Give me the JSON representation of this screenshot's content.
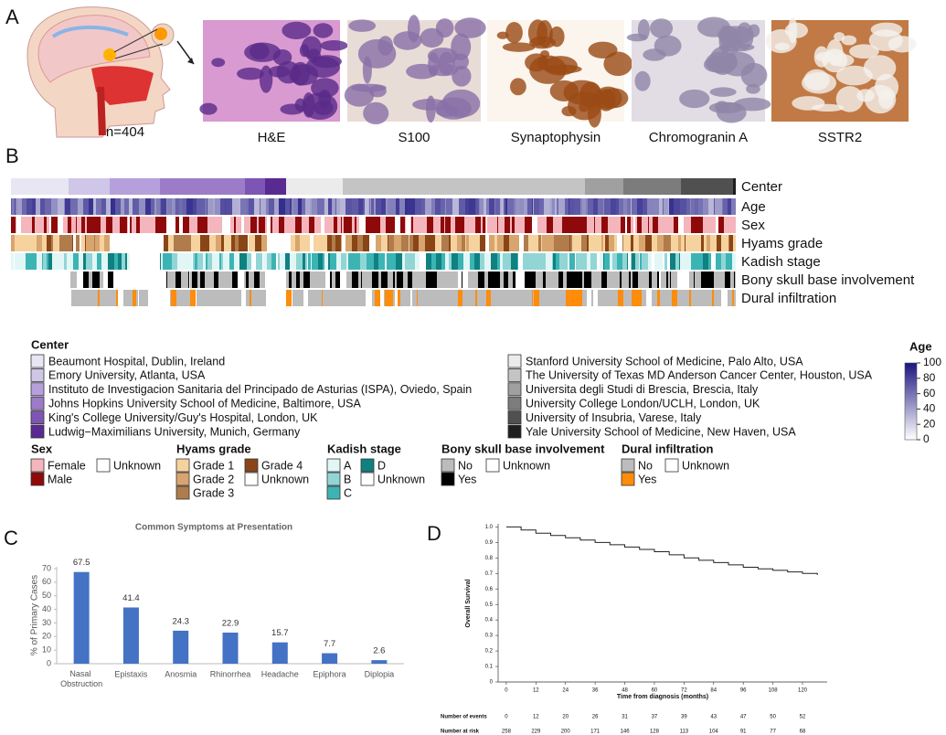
{
  "panel_a": {
    "label": "A",
    "n_label": "n=404",
    "stains": [
      "H&E",
      "S100",
      "Synaptophysin",
      "Chromogranin A",
      "SSTR2"
    ]
  },
  "panel_b": {
    "label": "B",
    "tracks": [
      "Center",
      "Age",
      "Sex",
      "Hyams grade",
      "Kadish stage",
      "Bony skull base involvement",
      "Dural infiltration"
    ],
    "legend": {
      "center": {
        "title": "Center",
        "items": [
          {
            "name": "Beaumont Hospital, Dublin, Ireland",
            "color": "#e9e6f4"
          },
          {
            "name": "Emory University, Atlanta, USA",
            "color": "#cfc6e8"
          },
          {
            "name": "Instituto de Investigacion Sanitaria del Principado de Asturias (ISPA), Oviedo, Spain",
            "color": "#b6a0dc"
          },
          {
            "name": "Johns Hopkins University School of Medicine, Baltimore, USA",
            "color": "#9c7cc8"
          },
          {
            "name": "King's College University/Guy's Hospital, London, UK",
            "color": "#7d55b4"
          },
          {
            "name": "Ludwig−Maximilians University, Munich, Germany",
            "color": "#5a2a93"
          },
          {
            "name": "Stanford University School of Medicine, Palo Alto, USA",
            "color": "#ebebeb"
          },
          {
            "name": "The University of Texas MD Anderson Cancer Center, Houston, USA",
            "color": "#c4c4c4"
          },
          {
            "name": "Universita degli Studi di Brescia, Brescia, Italy",
            "color": "#a0a0a0"
          },
          {
            "name": "University College London/UCLH, London, UK",
            "color": "#7c7c7c"
          },
          {
            "name": "University of Insubria, Varese, Italy",
            "color": "#505050"
          },
          {
            "name": "Yale University School of Medicine, New Haven, USA",
            "color": "#1e1e1e"
          }
        ]
      },
      "age": {
        "title": "Age",
        "lim": [
          0,
          100
        ],
        "ticks": [
          0,
          20,
          40,
          60,
          80,
          100
        ],
        "colors": [
          "#ffffff",
          "#1c1580"
        ]
      },
      "sex": {
        "title": "Sex",
        "items": [
          {
            "name": "Female",
            "color": "#f5b5bd"
          },
          {
            "name": "Male",
            "color": "#8e0a0a"
          },
          {
            "name": "Unknown",
            "color": "#ffffff"
          }
        ]
      },
      "hyams": {
        "title": "Hyams grade",
        "items": [
          {
            "name": "Grade 1",
            "color": "#f6d29e"
          },
          {
            "name": "Grade 2",
            "color": "#d8a56e"
          },
          {
            "name": "Grade 3",
            "color": "#b07c4c"
          },
          {
            "name": "Grade 4",
            "color": "#8a4516"
          },
          {
            "name": "Unknown",
            "color": "#ffffff"
          }
        ]
      },
      "kadish": {
        "title": "Kadish stage",
        "items": [
          {
            "name": "A",
            "color": "#e2f6f6"
          },
          {
            "name": "B",
            "color": "#92d5d5"
          },
          {
            "name": "C",
            "color": "#3cb4b4"
          },
          {
            "name": "D",
            "color": "#0f8181"
          },
          {
            "name": "Unknown",
            "color": "#ffffff"
          }
        ]
      },
      "bony": {
        "title": "Bony skull base involvement",
        "items": [
          {
            "name": "No",
            "color": "#bcbcbc"
          },
          {
            "name": "Yes",
            "color": "#000000"
          },
          {
            "name": "Unknown",
            "color": "#ffffff"
          }
        ]
      },
      "dural": {
        "title": "Dural infiltration",
        "items": [
          {
            "name": "No",
            "color": "#bcbcbc"
          },
          {
            "name": "Yes",
            "color": "#ff8c0a"
          },
          {
            "name": "Unknown",
            "color": "#ffffff"
          }
        ]
      }
    }
  },
  "chart_data": [
    {
      "type": "bar",
      "label": "C",
      "title": "Common Symptoms at Presentation",
      "y_label": "% of Primary Cases",
      "categories": [
        "Nasal Obstruction",
        "Epistaxis",
        "Anosmia",
        "Rhinorrhea",
        "Headache",
        "Epiphora",
        "Diplopia"
      ],
      "values": [
        67.5,
        41.4,
        24.3,
        22.9,
        15.7,
        7.7,
        2.6
      ],
      "color": "#4472c4",
      "ylim": [
        0,
        70
      ],
      "yticks": [
        0,
        10,
        20,
        30,
        40,
        50,
        60,
        70
      ]
    },
    {
      "type": "line",
      "label": "D",
      "y_label": "Overall Survival",
      "x_label": "Time from diagnosis (months)",
      "x": [
        0,
        6,
        12,
        18,
        24,
        30,
        36,
        42,
        48,
        54,
        60,
        66,
        72,
        78,
        84,
        90,
        96,
        102,
        108,
        114,
        120,
        126
      ],
      "series": [
        {
          "color": "#222222",
          "values": [
            1.0,
            0.98,
            0.96,
            0.945,
            0.93,
            0.915,
            0.9,
            0.885,
            0.87,
            0.855,
            0.84,
            0.82,
            0.8,
            0.785,
            0.77,
            0.755,
            0.74,
            0.73,
            0.72,
            0.71,
            0.7,
            0.69
          ]
        }
      ],
      "xlim": [
        -3.3,
        130
      ],
      "xticks": [
        0,
        12,
        24,
        36,
        48,
        60,
        72,
        84,
        96,
        108,
        120
      ],
      "ylim": [
        0,
        1.02
      ],
      "yticks": [
        0,
        0.1,
        0.2,
        0.3,
        0.4,
        0.5,
        0.6,
        0.7,
        0.8,
        0.9,
        {
          "value": 1,
          "label": "1.0"
        }
      ],
      "risk_table": [
        {
          "name": "Number of events",
          "values": [
            0,
            12,
            20,
            26,
            31,
            37,
            39,
            43,
            47,
            50,
            52
          ]
        },
        {
          "name": "Number at risk",
          "values": [
            258,
            229,
            200,
            171,
            146,
            128,
            113,
            104,
            91,
            77,
            68
          ]
        }
      ]
    }
  ]
}
